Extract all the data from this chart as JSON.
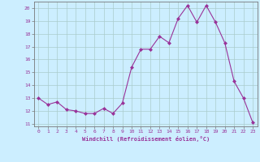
{
  "x": [
    0,
    1,
    2,
    3,
    4,
    5,
    6,
    7,
    8,
    9,
    10,
    11,
    12,
    13,
    14,
    15,
    16,
    17,
    18,
    19,
    20,
    21,
    22,
    23
  ],
  "y": [
    13.0,
    12.5,
    12.7,
    12.1,
    12.0,
    11.8,
    11.8,
    12.2,
    11.8,
    12.6,
    15.4,
    16.8,
    16.8,
    17.8,
    17.3,
    19.2,
    20.2,
    18.9,
    20.2,
    18.9,
    17.3,
    14.3,
    13.0,
    11.1
  ],
  "line_color": "#993399",
  "marker": "D",
  "marker_size": 2.0,
  "bg_color": "#cceeff",
  "grid_color": "#aacccc",
  "xlabel": "Windchill (Refroidissement éolien,°C)",
  "xlim": [
    -0.5,
    23.5
  ],
  "ylim": [
    10.8,
    20.5
  ],
  "yticks": [
    11,
    12,
    13,
    14,
    15,
    16,
    17,
    18,
    19,
    20
  ],
  "xticks": [
    0,
    1,
    2,
    3,
    4,
    5,
    6,
    7,
    8,
    9,
    10,
    11,
    12,
    13,
    14,
    15,
    16,
    17,
    18,
    19,
    20,
    21,
    22,
    23
  ],
  "tick_color": "#993399",
  "label_color": "#993399",
  "axis_color": "#777777",
  "tick_fontsize": 4.5,
  "xlabel_fontsize": 5.0
}
